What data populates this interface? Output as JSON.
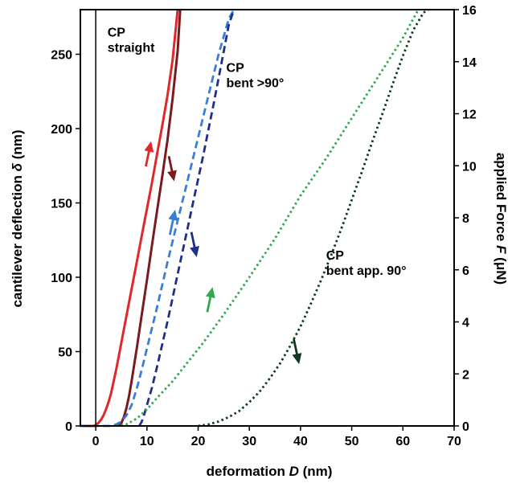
{
  "chart_data": {
    "type": "line",
    "xlabel": "deformation D (nm)",
    "xlabel_parts": {
      "pre": "deformation ",
      "var": "D",
      "post": " (nm)"
    },
    "ylabel": "cantilever deflection δ (nm)",
    "ylabel_parts": {
      "pre": "cantilever deflection ",
      "var": "δ",
      "post": " (nm)"
    },
    "y2label": "applied Force F (μN)",
    "y2label_parts": {
      "pre": "applied Force ",
      "var": "F",
      "post": " (μN)"
    },
    "xlim": [
      -3,
      70
    ],
    "ylim": [
      0,
      280
    ],
    "y2lim": [
      0,
      16
    ],
    "xticks": [
      0,
      10,
      20,
      30,
      40,
      50,
      60,
      70
    ],
    "yticks": [
      0,
      50,
      100,
      150,
      200,
      250
    ],
    "y2ticks": [
      0,
      2,
      4,
      6,
      8,
      10,
      12,
      14,
      16
    ],
    "grid": false,
    "vertical_line_x": 0,
    "series": [
      {
        "color": "#e0282a",
        "style": "solid",
        "x": [
          -3,
          -0.5,
          0,
          0.5,
          1,
          1.5,
          2,
          2.5,
          3,
          4,
          5,
          6,
          7,
          8,
          9,
          10,
          11,
          12,
          13,
          14,
          15,
          16
        ],
        "y": [
          0,
          0,
          0.5,
          2,
          4,
          7,
          11,
          16,
          22,
          38,
          56,
          74,
          92,
          110,
          128,
          146,
          164,
          183,
          202,
          222,
          246,
          280
        ]
      },
      {
        "color": "#7a1a1e",
        "style": "solid",
        "x": [
          4.5,
          5,
          5.5,
          6,
          6.5,
          7,
          8,
          9,
          10,
          11,
          12,
          13,
          14,
          15,
          16,
          16.5
        ],
        "y": [
          0,
          2,
          6,
          12,
          20,
          30,
          52,
          75,
          98,
          122,
          145,
          168,
          192,
          220,
          252,
          280
        ]
      },
      {
        "color": "#3a7fd5",
        "style": "dashed",
        "x": [
          -3,
          3,
          4,
          5,
          6,
          7,
          8,
          9,
          10,
          12,
          14,
          16,
          18,
          20,
          22,
          24,
          26,
          27
        ],
        "y": [
          0,
          0,
          1,
          3,
          7,
          14,
          25,
          38,
          52,
          80,
          110,
          138,
          166,
          194,
          222,
          250,
          274,
          280
        ]
      },
      {
        "color": "#1f2f8a",
        "style": "dashed",
        "x": [
          8.5,
          9,
          9.5,
          10,
          11,
          12,
          13,
          14,
          15,
          16,
          17,
          18,
          19,
          20,
          21,
          22,
          23,
          24,
          25,
          26,
          27
        ],
        "y": [
          0,
          3,
          8,
          14,
          26,
          40,
          55,
          70,
          86,
          102,
          118,
          134,
          150,
          166,
          182,
          199,
          216,
          234,
          252,
          270,
          280
        ]
      },
      {
        "color": "#2fa84f",
        "style": "dotted",
        "x": [
          4,
          6,
          8,
          10,
          12,
          15,
          18,
          21,
          25,
          30,
          35,
          40,
          45,
          50,
          55,
          60,
          63
        ],
        "y": [
          0,
          1,
          5,
          11,
          19,
          30,
          43,
          56,
          75,
          100,
          126,
          155,
          180,
          207,
          234,
          261,
          280
        ]
      },
      {
        "color": "#0e3a1f",
        "style": "dotted",
        "x": [
          20,
          22,
          24,
          26,
          28,
          30,
          32,
          34,
          36,
          38,
          40,
          42,
          44,
          46,
          48,
          50,
          52,
          54,
          56,
          58,
          60,
          62,
          64,
          65
        ],
        "y": [
          0,
          1,
          3,
          6,
          10,
          16,
          23,
          32,
          42,
          54,
          67,
          82,
          98,
          115,
          133,
          152,
          171,
          191,
          210,
          230,
          249,
          266,
          278,
          280
        ]
      }
    ],
    "arrows": [
      {
        "color": "#e0282a",
        "x": 10.3,
        "y": 183,
        "direction": "up"
      },
      {
        "color": "#7a1a1e",
        "x": 14.8,
        "y": 173,
        "direction": "down"
      },
      {
        "color": "#3a7fd5",
        "x": 15,
        "y": 137,
        "direction": "up"
      },
      {
        "color": "#1f2f8a",
        "x": 19.2,
        "y": 122,
        "direction": "down"
      },
      {
        "color": "#2fa84f",
        "x": 22.3,
        "y": 85,
        "direction": "up"
      },
      {
        "color": "#0e3a1f",
        "x": 39.2,
        "y": 50,
        "direction": "down"
      }
    ],
    "annotations": [
      {
        "lines": [
          "CP",
          "straight"
        ],
        "x": 2.3,
        "y": 262
      },
      {
        "lines": [
          "CP",
          "bent >90°"
        ],
        "x": 25.5,
        "y": 238
      },
      {
        "lines": [
          "CP",
          "bent app. 90°"
        ],
        "x": 45,
        "y": 112
      }
    ]
  }
}
